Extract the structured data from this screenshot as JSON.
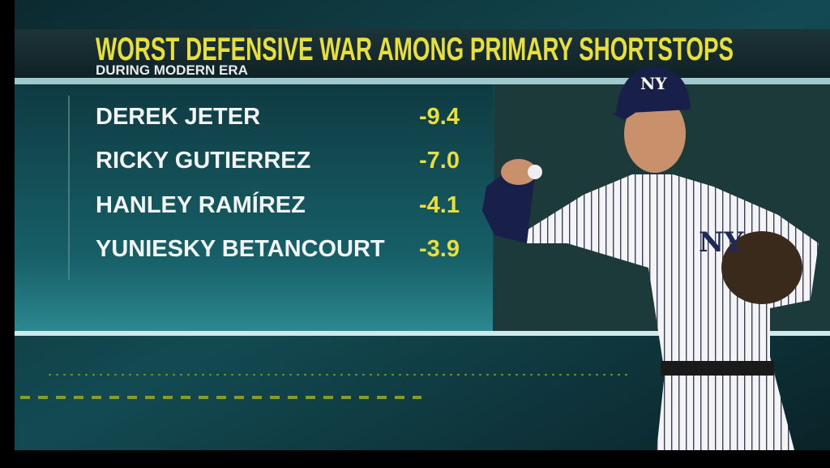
{
  "header": {
    "title": "WORST DEFENSIVE WAR AMONG PRIMARY SHORTSTOPS",
    "subtitle": "DURING MODERN ERA"
  },
  "table": {
    "rows": [
      [
        "DEREK JETER",
        "-9.4"
      ],
      [
        "RICKY GUTIERREZ",
        "-7.0"
      ],
      [
        "HANLEY RAMÍREZ",
        "-4.1"
      ],
      [
        "YUNIESKY BETANCOURT",
        "-3.9"
      ]
    ]
  }
}
